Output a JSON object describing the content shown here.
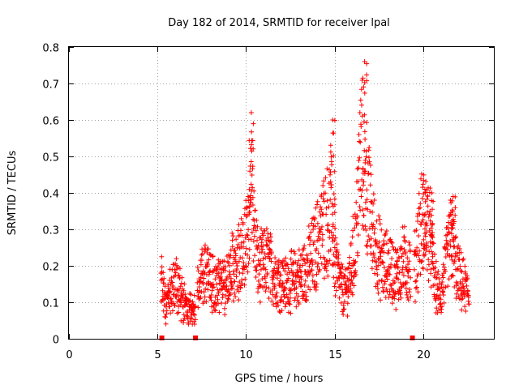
{
  "chart_data": {
    "type": "scatter",
    "title": "Day 182 of 2014, SRMTID for receiver lpal",
    "xlabel": "GPS time / hours",
    "ylabel": "SRMTID / TECUs",
    "xlim": [
      0,
      24
    ],
    "ylim": [
      0,
      0.8
    ],
    "xticks": [
      0,
      5,
      10,
      15,
      20
    ],
    "xtick_labels": [
      "0",
      "5",
      "10",
      "15",
      "20"
    ],
    "yticks": [
      0,
      0.1,
      0.2,
      0.3,
      0.4,
      0.5,
      0.6,
      0.7,
      0.8
    ],
    "ytick_labels": [
      "0",
      "0.1",
      "0.2",
      "0.3",
      "0.4",
      "0.5",
      "0.6",
      "0.7",
      "0.8"
    ],
    "grid": true,
    "marker": "plus",
    "color": "#ff0000",
    "gap_markers_x": [
      5.25,
      7.15,
      19.4
    ],
    "series": [
      {
        "name": "SRMTID",
        "segments": [
          {
            "from": 5.2,
            "to": 7.15,
            "anchors": [
              [
                5.2,
                0.18
              ],
              [
                5.5,
                0.08
              ],
              [
                5.8,
                0.14
              ],
              [
                6.1,
                0.15
              ],
              [
                6.4,
                0.11
              ],
              [
                6.7,
                0.08
              ],
              [
                7.0,
                0.07
              ]
            ]
          },
          {
            "from": 7.25,
            "to": 19.3,
            "anchors": [
              [
                7.3,
                0.13
              ],
              [
                7.7,
                0.19
              ],
              [
                8.2,
                0.15
              ],
              [
                8.8,
                0.14
              ],
              [
                9.3,
                0.2
              ],
              [
                9.8,
                0.22
              ],
              [
                10.1,
                0.27
              ],
              [
                10.3,
                0.42
              ],
              [
                10.45,
                0.3
              ],
              [
                10.7,
                0.19
              ],
              [
                11.2,
                0.21
              ],
              [
                11.7,
                0.17
              ],
              [
                12.2,
                0.15
              ],
              [
                12.7,
                0.16
              ],
              [
                13.1,
                0.17
              ],
              [
                13.5,
                0.2
              ],
              [
                13.8,
                0.23
              ],
              [
                14.1,
                0.27
              ],
              [
                14.4,
                0.31
              ],
              [
                14.65,
                0.33
              ],
              [
                14.8,
                0.36
              ],
              [
                15.0,
                0.22
              ],
              [
                15.3,
                0.15
              ],
              [
                15.6,
                0.12
              ],
              [
                15.9,
                0.18
              ],
              [
                16.2,
                0.27
              ],
              [
                16.5,
                0.52
              ],
              [
                16.75,
                0.45
              ],
              [
                17.0,
                0.34
              ],
              [
                17.3,
                0.26
              ],
              [
                17.7,
                0.2
              ],
              [
                18.1,
                0.2
              ],
              [
                18.5,
                0.17
              ],
              [
                18.9,
                0.21
              ],
              [
                19.3,
                0.19
              ]
            ]
          },
          {
            "from": 19.5,
            "to": 22.6,
            "anchors": [
              [
                19.5,
                0.18
              ],
              [
                19.8,
                0.3
              ],
              [
                20.1,
                0.33
              ],
              [
                20.4,
                0.28
              ],
              [
                20.7,
                0.14
              ],
              [
                21.0,
                0.11
              ],
              [
                21.3,
                0.2
              ],
              [
                21.6,
                0.28
              ],
              [
                21.9,
                0.18
              ],
              [
                22.2,
                0.15
              ],
              [
                22.6,
                0.12
              ]
            ]
          }
        ]
      }
    ],
    "annotations_peaks": [
      {
        "x": 10.3,
        "y": 0.62
      },
      {
        "x": 14.9,
        "y": 0.6
      },
      {
        "x": 16.7,
        "y": 0.76
      },
      {
        "x": 20.1,
        "y": 0.41
      },
      {
        "x": 20.5,
        "y": 0.4
      },
      {
        "x": 21.7,
        "y": 0.39
      }
    ]
  }
}
